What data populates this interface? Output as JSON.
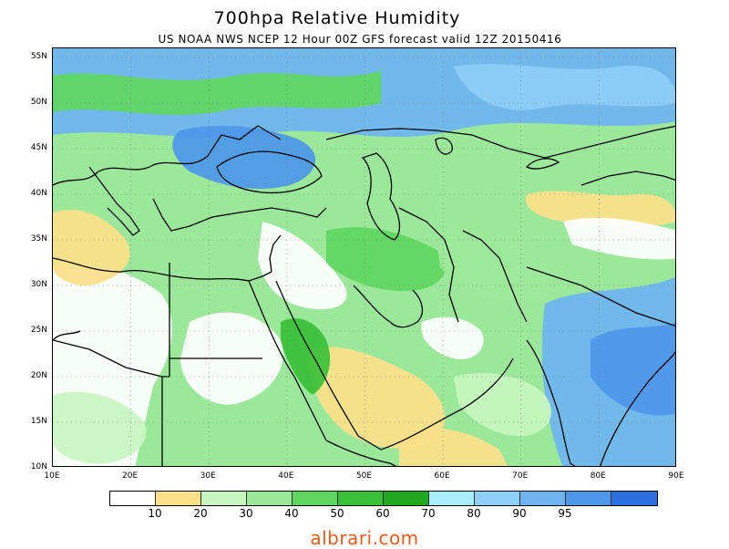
{
  "title": "700hpa Relative Humidity",
  "subtitle": "US NOAA NWS NCEP 12 Hour 00Z GFS forecast valid 12Z 20150416",
  "map": {
    "lon_range": [
      10,
      90
    ],
    "lat_range": [
      10,
      56
    ],
    "lat_labels": [
      "55N",
      "50N",
      "45N",
      "40N",
      "35N",
      "30N",
      "25N",
      "20N",
      "15N",
      "10N"
    ],
    "lat_values": [
      55,
      50,
      45,
      40,
      35,
      30,
      25,
      20,
      15,
      10
    ],
    "lon_labels": [
      "10E",
      "20E",
      "30E",
      "40E",
      "50E",
      "60E",
      "70E",
      "80E",
      "90E"
    ],
    "lon_values": [
      10,
      20,
      30,
      40,
      50,
      60,
      70,
      80,
      90
    ],
    "grid": "dotted"
  },
  "legend": {
    "colors": [
      "#ffffff",
      "#fbe08a",
      "#c8f5c0",
      "#9ce89a",
      "#5fd65f",
      "#38c038",
      "#20a820",
      "#a8eefc",
      "#8ecef8",
      "#6eb4f2",
      "#4d96ea",
      "#2a6ee0"
    ],
    "labels": [
      "10",
      "20",
      "30",
      "40",
      "50",
      "60",
      "70",
      "80",
      "90",
      "95"
    ]
  },
  "footer": "albrari.com"
}
